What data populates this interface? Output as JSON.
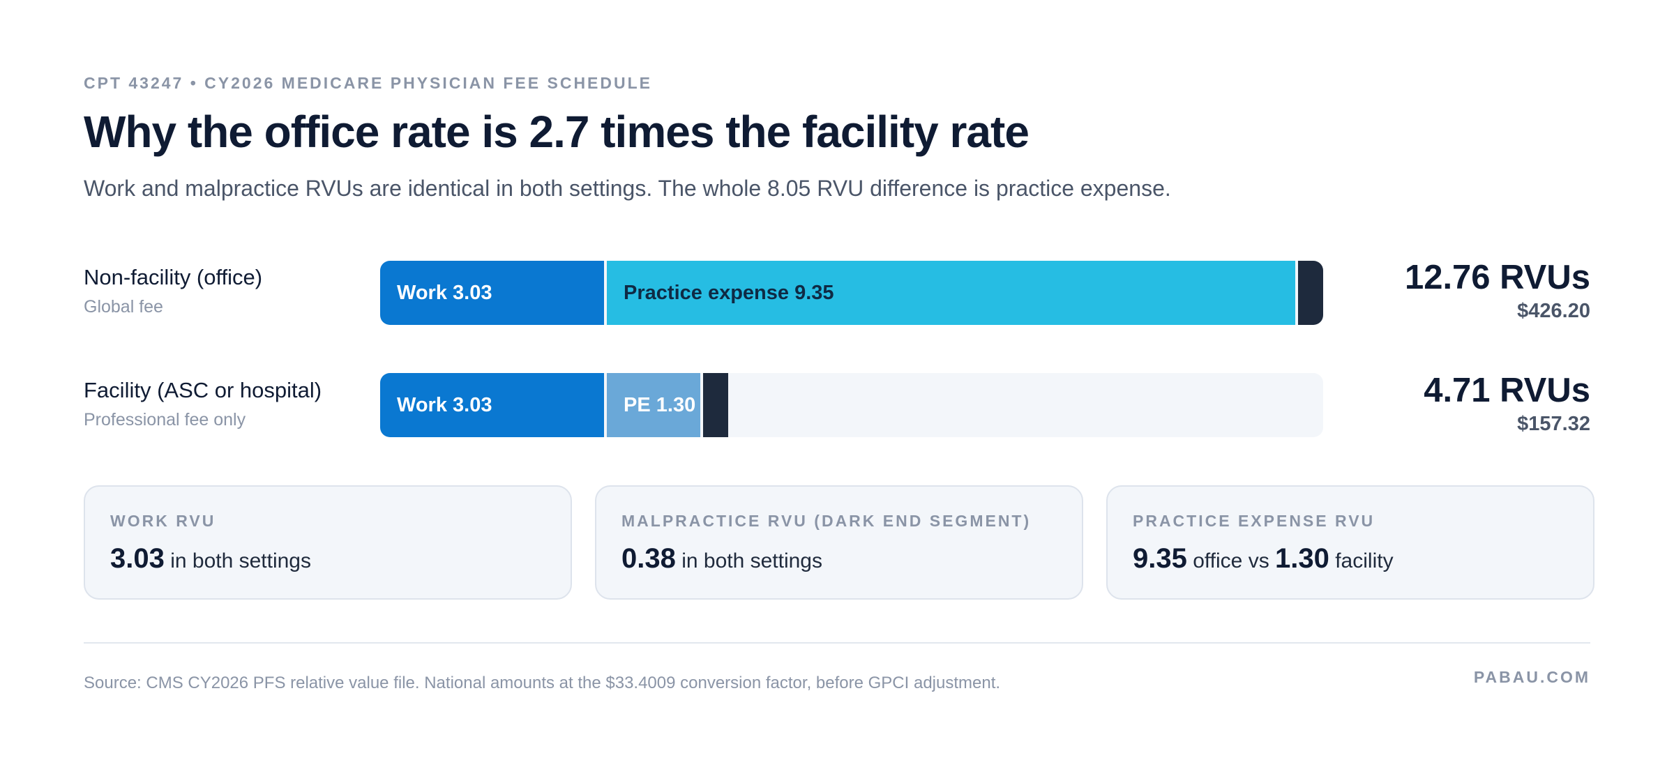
{
  "header": {
    "eyebrow": "CPT 43247 • CY2026 MEDICARE PHYSICIAN FEE SCHEDULE",
    "title": "Why the office rate is 2.7 times the facility rate",
    "subtitle": "Work and malpractice RVUs are identical in both settings. The whole 8.05 RVU difference is practice expense."
  },
  "chart_data": {
    "type": "bar",
    "orientation": "horizontal",
    "stacked": true,
    "xlim": [
      0,
      12.76
    ],
    "categories": [
      "Non-facility (office)",
      "Facility (ASC or hospital)"
    ],
    "category_sublabels": [
      "Global fee",
      "Professional fee only"
    ],
    "series": [
      {
        "name": "Work",
        "values": [
          3.03,
          3.03
        ],
        "segment_labels": [
          "Work 3.03",
          "Work 3.03"
        ],
        "colors": [
          "#0a78d1",
          "#0a78d1"
        ]
      },
      {
        "name": "Practice expense",
        "values": [
          9.35,
          1.3
        ],
        "segment_labels": [
          "Practice expense 9.35",
          "PE 1.30"
        ],
        "colors": [
          "#26bde3",
          "#6aa8d8"
        ]
      },
      {
        "name": "Malpractice",
        "values": [
          0.38,
          0.38
        ],
        "segment_labels": [
          "",
          ""
        ],
        "colors": [
          "#1e2a3d",
          "#1e2a3d"
        ]
      }
    ],
    "totals": [
      {
        "rvu_label": "12.76 RVUs",
        "amount_label": "$426.20"
      },
      {
        "rvu_label": "4.71 RVUs",
        "amount_label": "$157.32"
      }
    ],
    "track_color": "#f3f6fa"
  },
  "cards": [
    {
      "label": "WORK RVU",
      "value": "3.03",
      "text": " in both settings"
    },
    {
      "label": "MALPRACTICE RVU (DARK END SEGMENT)",
      "value": "0.38",
      "text": " in both settings"
    },
    {
      "label": "PRACTICE EXPENSE RVU",
      "value": "9.35",
      "text": " office vs ",
      "value2": "1.30",
      "text2": " facility"
    }
  ],
  "footer": {
    "source": "Source: CMS CY2026 PFS relative value file. National amounts at the $33.4009 conversion factor, before GPCI adjustment.",
    "brand": "PABAU.COM"
  },
  "colors": {
    "work": "#0a78d1",
    "practice_expense_office": "#26bde3",
    "practice_expense_facility": "#6aa8d8",
    "malpractice": "#1e2a3d",
    "text_dark": "#0f1b33",
    "text_muted": "#8a94a6"
  }
}
